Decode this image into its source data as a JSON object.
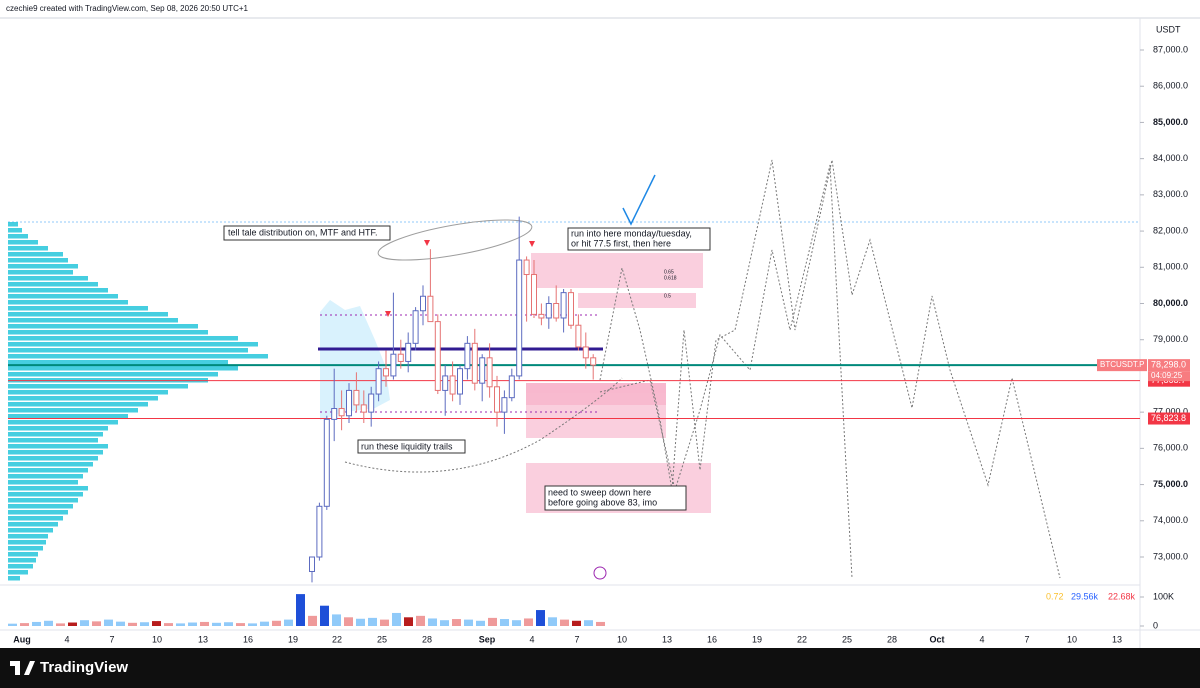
{
  "header": {
    "text": "czechie9 created with TradingView.com, Sep 08, 2026 20:50 UTC+1"
  },
  "price_axis": {
    "unit": "USDT",
    "ylim": [
      73000,
      87000
    ],
    "ticks": [
      {
        "value": 87000,
        "label": "87,000.0"
      },
      {
        "value": 86000,
        "label": "86,000.0"
      },
      {
        "value": 85000,
        "label": "85,000.0"
      },
      {
        "value": 84000,
        "label": "84,000.0"
      },
      {
        "value": 83000,
        "label": "83,000.0"
      },
      {
        "value": 82000,
        "label": "82,000.0"
      },
      {
        "value": 81000,
        "label": "81,000.0"
      },
      {
        "value": 80000,
        "label": "80,000.0"
      },
      {
        "value": 79000,
        "label": "79,000.0"
      },
      {
        "value": 77000,
        "label": "77,000.0"
      },
      {
        "value": 76000,
        "label": "76,000.0"
      },
      {
        "value": 75000,
        "label": "75,000.0"
      },
      {
        "value": 74000,
        "label": "74,000.0"
      },
      {
        "value": 73000,
        "label": "73,000.0"
      }
    ]
  },
  "time_axis": {
    "labels": [
      "Aug",
      "4",
      "7",
      "10",
      "13",
      "16",
      "19",
      "22",
      "25",
      "28",
      "Sep",
      "4",
      "7",
      "10",
      "13",
      "16",
      "19",
      "22",
      "25",
      "28",
      "Oct",
      "4",
      "7",
      "10",
      "13"
    ]
  },
  "candles": [
    [
      72600,
      73000,
      72300,
      73000
    ],
    [
      73000,
      74500,
      72900,
      74400
    ],
    [
      74400,
      76900,
      74300,
      76800
    ],
    [
      76800,
      78200,
      76200,
      77100
    ],
    [
      77100,
      77600,
      76500,
      76900
    ],
    [
      76900,
      77800,
      76700,
      77600
    ],
    [
      77600,
      78100,
      77000,
      77200
    ],
    [
      77200,
      77600,
      76700,
      77000
    ],
    [
      77000,
      77700,
      76600,
      77500
    ],
    [
      77500,
      78400,
      77300,
      78200
    ],
    [
      78200,
      78700,
      77700,
      78000
    ],
    [
      78000,
      80300,
      77900,
      78600
    ],
    [
      78600,
      79000,
      78200,
      78400
    ],
    [
      78400,
      79200,
      78100,
      78900
    ],
    [
      78900,
      79900,
      78700,
      79800
    ],
    [
      79800,
      80500,
      79400,
      80200
    ],
    [
      80200,
      81500,
      79600,
      79500
    ],
    [
      79500,
      79700,
      77500,
      77600
    ],
    [
      77600,
      78300,
      76900,
      78000
    ],
    [
      78000,
      78400,
      77300,
      77500
    ],
    [
      77500,
      78300,
      77200,
      78200
    ],
    [
      78200,
      79100,
      77900,
      78900
    ],
    [
      78900,
      79300,
      77600,
      77800
    ],
    [
      77800,
      78600,
      77300,
      78500
    ],
    [
      78500,
      78900,
      77400,
      77700
    ],
    [
      77700,
      78000,
      76600,
      77000
    ],
    [
      77000,
      77600,
      76400,
      77400
    ],
    [
      77400,
      78200,
      77300,
      78000
    ],
    [
      78000,
      82400,
      77900,
      81200
    ],
    [
      81200,
      81300,
      79500,
      80800
    ],
    [
      80800,
      81200,
      79600,
      79700
    ],
    [
      79700,
      80000,
      79400,
      79600
    ],
    [
      79600,
      80200,
      79300,
      80000
    ],
    [
      80000,
      80500,
      79500,
      79600
    ],
    [
      79600,
      80400,
      79200,
      80300
    ],
    [
      80300,
      80400,
      79300,
      79400
    ],
    [
      79400,
      79700,
      78700,
      78800
    ],
    [
      78800,
      79200,
      78200,
      78500
    ],
    [
      78500,
      78600,
      77900,
      78300
    ]
  ],
  "volume": {
    "ticks": [
      {
        "value": 100,
        "label": "100K"
      },
      0
    ],
    "values": [
      8,
      10,
      14,
      18,
      9,
      12,
      20,
      16,
      22,
      15,
      11,
      13,
      17,
      10,
      9,
      12,
      14,
      11,
      13,
      10,
      9,
      15,
      18,
      22,
      110,
      35,
      70,
      40,
      30,
      25,
      28,
      22,
      45,
      30,
      35,
      26,
      20,
      24,
      22,
      18,
      28,
      24,
      20,
      26,
      55,
      30,
      22,
      18,
      20,
      14
    ],
    "legend": [
      "0.72",
      "29.56k",
      "22.68k"
    ]
  },
  "volume_profile": [
    10,
    14,
    20,
    30,
    40,
    55,
    60,
    70,
    65,
    80,
    90,
    100,
    110,
    120,
    140,
    160,
    170,
    190,
    200,
    230,
    250,
    240,
    260,
    220,
    230,
    210,
    200,
    180,
    160,
    150,
    140,
    130,
    120,
    110,
    100,
    95,
    90,
    100,
    95,
    90,
    85,
    80,
    75,
    70,
    80,
    75,
    70,
    65,
    60,
    55,
    50,
    45,
    40,
    38,
    35,
    30,
    28,
    25,
    20,
    12
  ],
  "levels": [
    {
      "value": 78298,
      "label": "78,298.0",
      "name": "BTCUSDT.P",
      "timer": "04:09:25"
    },
    {
      "value": 77868.7,
      "label": "77,868.7"
    },
    {
      "value": 76823.8,
      "label": "76,823.8"
    }
  ],
  "annotations": {
    "distribution": "tell tale distribution on, MTF and HTF.",
    "run_into": [
      "run into here monday/tuesday,",
      "or hit 77.5 first, then here"
    ],
    "trails": "run these liquidity trails",
    "sweep": [
      "need to sweep down here",
      "before going above 83, imo"
    ],
    "fibs": [
      "0.65",
      "0.618",
      "0.5"
    ]
  },
  "footer": {
    "brand": "TradingView"
  }
}
